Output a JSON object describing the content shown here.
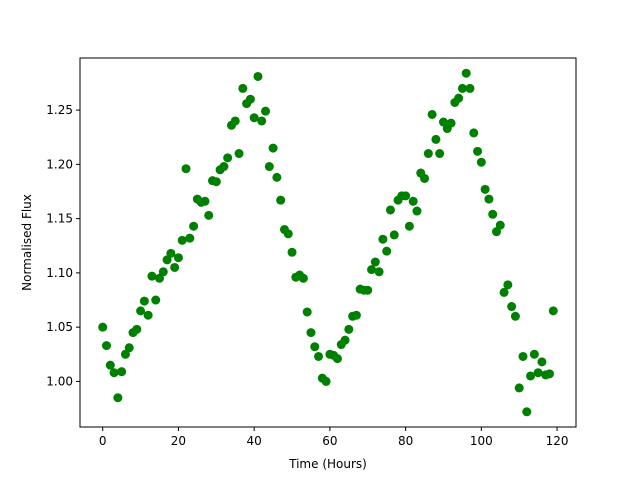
{
  "chart_data": {
    "type": "scatter",
    "title": "",
    "xlabel": "Time (Hours)",
    "ylabel": "Normalised Flux",
    "xlim": [
      -6,
      125
    ],
    "ylim": [
      0.958,
      1.298
    ],
    "xticks": [
      0,
      20,
      40,
      60,
      80,
      100,
      120
    ],
    "yticks": [
      1.0,
      1.05,
      1.1,
      1.15,
      1.2,
      1.25
    ],
    "xtick_labels": [
      "0",
      "20",
      "40",
      "60",
      "80",
      "100",
      "120"
    ],
    "ytick_labels": [
      "1.00",
      "1.05",
      "1.10",
      "1.15",
      "1.20",
      "1.25"
    ],
    "grid": false,
    "legend": "none",
    "marker_color": "#008000",
    "series": [
      {
        "x": [
          0,
          1,
          2,
          3,
          4,
          5,
          6,
          7,
          8,
          9,
          10,
          11,
          12,
          13,
          14,
          15,
          16,
          17,
          18,
          19,
          20,
          21,
          22,
          23,
          24,
          25,
          26,
          27,
          28,
          29,
          30,
          31,
          32,
          33,
          34,
          35,
          36,
          37,
          38,
          39,
          40,
          41,
          42,
          43,
          44,
          45,
          46,
          47,
          48,
          49,
          50,
          51,
          52,
          53,
          54,
          55,
          56,
          57,
          58,
          59,
          60,
          61,
          62,
          63,
          64,
          65,
          66,
          67,
          68,
          69,
          70,
          71,
          72,
          73,
          74,
          75,
          76,
          77,
          78,
          79,
          80,
          81,
          82,
          83,
          84,
          85,
          86,
          87,
          88,
          89,
          90,
          91,
          92,
          93,
          94,
          95,
          96,
          97,
          98,
          99,
          100,
          101,
          102,
          103,
          104,
          105,
          106,
          107,
          108,
          109,
          110,
          111,
          112,
          113,
          114,
          115,
          116,
          117,
          118,
          119
        ],
        "y": [
          1.05,
          1.033,
          1.015,
          1.008,
          0.985,
          1.009,
          1.025,
          1.031,
          1.045,
          1.048,
          1.065,
          1.074,
          1.061,
          1.097,
          1.075,
          1.095,
          1.101,
          1.112,
          1.118,
          1.105,
          1.114,
          1.13,
          1.196,
          1.132,
          1.143,
          1.168,
          1.165,
          1.166,
          1.153,
          1.185,
          1.184,
          1.195,
          1.198,
          1.206,
          1.236,
          1.24,
          1.21,
          1.27,
          1.256,
          1.26,
          1.243,
          1.281,
          1.24,
          1.249,
          1.198,
          1.215,
          1.188,
          1.167,
          1.14,
          1.136,
          1.119,
          1.096,
          1.098,
          1.095,
          1.064,
          1.045,
          1.032,
          1.023,
          1.003,
          1.0,
          1.025,
          1.024,
          1.021,
          1.034,
          1.038,
          1.048,
          1.06,
          1.061,
          1.085,
          1.084,
          1.084,
          1.103,
          1.11,
          1.101,
          1.131,
          1.12,
          1.158,
          1.135,
          1.167,
          1.171,
          1.171,
          1.143,
          1.166,
          1.157,
          1.192,
          1.187,
          1.21,
          1.246,
          1.223,
          1.21,
          1.239,
          1.233,
          1.238,
          1.257,
          1.261,
          1.27,
          1.284,
          1.27,
          1.229,
          1.212,
          1.202,
          1.177,
          1.168,
          1.154,
          1.138,
          1.144,
          1.082,
          1.089,
          1.069,
          1.06,
          0.994,
          1.023,
          0.972,
          1.005,
          1.025,
          1.008,
          1.018,
          1.006,
          1.007,
          1.065
        ]
      }
    ]
  }
}
